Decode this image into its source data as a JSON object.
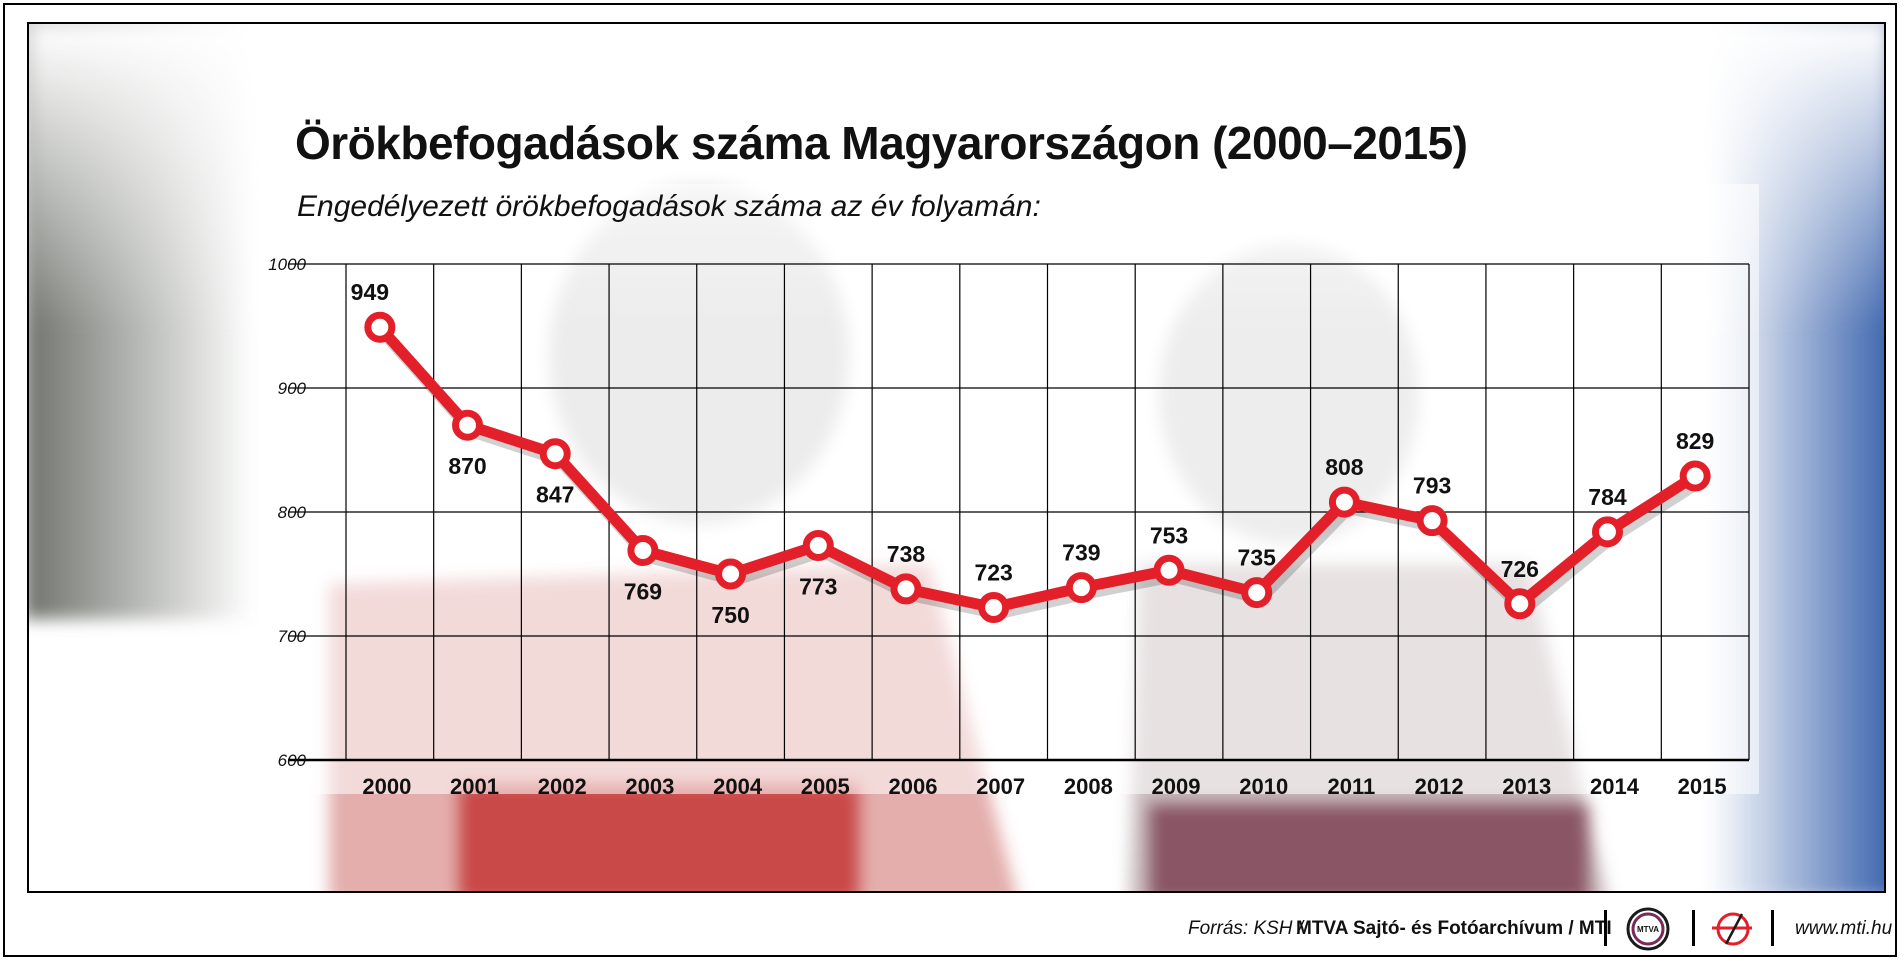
{
  "title": "Örökbefogadások száma Magyarországon (2000–2015)",
  "subtitle": "Engedélyezett örökbefogadások száma az év folyamán:",
  "footer": {
    "source_label": "Forrás: KSH /",
    "source_strong": "MTVA Sajtó- és Fotóarchívum / MTI",
    "logo1_text": "MTVA",
    "url": "www.mti.hu"
  },
  "colors": {
    "line": "#e3202a",
    "marker_fill": "#ffffff",
    "grid": "#000000",
    "photo_left": "#7b7f78",
    "photo_kids_red": "#c9393b",
    "photo_right_blue": "#2f5aa8"
  },
  "chart_data": {
    "type": "line",
    "title": "Örökbefogadások száma Magyarországon (2000–2015)",
    "subtitle": "Engedélyezett örökbefogadások száma az év folyamán:",
    "xlabel": "",
    "ylabel": "",
    "x": [
      "2000",
      "2001",
      "2002",
      "2003",
      "2004",
      "2005",
      "2006",
      "2007",
      "2008",
      "2009",
      "2010",
      "2011",
      "2012",
      "2013",
      "2014",
      "2015"
    ],
    "values": [
      949,
      870,
      847,
      769,
      750,
      773,
      738,
      723,
      739,
      753,
      735,
      808,
      793,
      726,
      784,
      829
    ],
    "data_labels": [
      "949",
      "870",
      "847",
      "769",
      "750",
      "773",
      "738",
      "723",
      "739",
      "753",
      "735",
      "808",
      "793",
      "726",
      "784",
      "829"
    ],
    "label_position": [
      "above",
      "below",
      "below",
      "below",
      "below",
      "below",
      "above",
      "above",
      "above",
      "above",
      "above",
      "above",
      "above",
      "above",
      "above",
      "above"
    ],
    "ylim": [
      600,
      1000
    ],
    "yticks": [
      "1000",
      "900",
      "800",
      "700",
      "600"
    ],
    "grid": true,
    "legend": "none"
  }
}
